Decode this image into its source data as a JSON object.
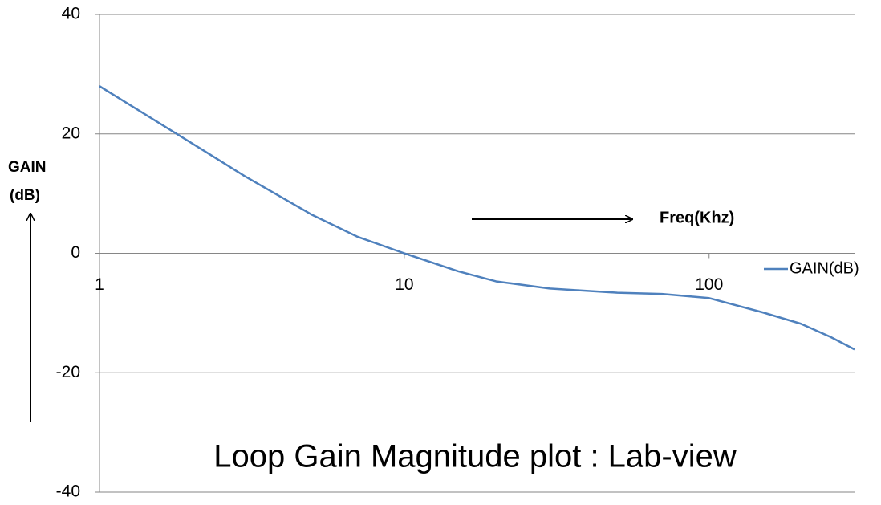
{
  "chart_data": {
    "type": "line",
    "title": "Loop Gain Magnitude plot : Lab-view",
    "y_label_lines": [
      "GAIN",
      "(dB)"
    ],
    "annotation": "Freq(Khz)",
    "x": [
      1,
      2,
      3,
      5,
      7,
      10,
      15,
      20,
      30,
      50,
      70,
      100,
      150,
      200,
      250,
      300
    ],
    "series": [
      {
        "name": "GAIN(dB)",
        "color": "#4f81bd",
        "values": [
          28,
          18.5,
          12.9,
          6.4,
          2.8,
          0,
          -3,
          -4.7,
          -5.9,
          -6.6,
          -6.8,
          -7.5,
          -9.9,
          -11.8,
          -14,
          -16.1
        ]
      }
    ],
    "xscale": "log",
    "xlim": [
      1,
      300
    ],
    "xticks": [
      1,
      10,
      100
    ],
    "ylim": [
      -40,
      40
    ],
    "yticks": [
      -40,
      -20,
      0,
      20,
      40
    ],
    "grid": true,
    "legend": "right"
  }
}
